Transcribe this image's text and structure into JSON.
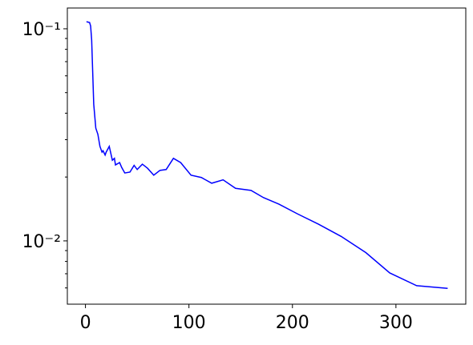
{
  "chart_data": {
    "type": "line",
    "log_y": true,
    "color": "#0000ff",
    "x": [
      1,
      4,
      5,
      6,
      8,
      10,
      12,
      14,
      16,
      17,
      19,
      20,
      23,
      26,
      28,
      29,
      33,
      35,
      38,
      43,
      47,
      50,
      55,
      60,
      66,
      72,
      78,
      85,
      92,
      102,
      112,
      122,
      133,
      145,
      160,
      172,
      187,
      205,
      225,
      247,
      271,
      294,
      320,
      350
    ],
    "values": [
      0.108,
      0.107,
      0.103,
      0.0886,
      0.0441,
      0.034,
      0.0318,
      0.0279,
      0.0262,
      0.0266,
      0.0254,
      0.0262,
      0.0279,
      0.024,
      0.0245,
      0.0228,
      0.0234,
      0.0222,
      0.0209,
      0.0211,
      0.0227,
      0.0217,
      0.023,
      0.022,
      0.0204,
      0.0215,
      0.0217,
      0.0245,
      0.0234,
      0.0204,
      0.0199,
      0.0187,
      0.0194,
      0.0177,
      0.0173,
      0.016,
      0.0149,
      0.0134,
      0.012,
      0.0105,
      0.0088,
      0.00706,
      0.00615,
      0.00597
    ],
    "xlim": [
      -17.5,
      367.5
    ],
    "xticks": [
      0,
      100,
      200,
      300
    ],
    "ylim": [
      0.00503,
      0.1253
    ],
    "yticks": [
      {
        "value": 0.01,
        "label": "10⁻²"
      },
      {
        "value": 0.1,
        "label": "10⁻¹"
      }
    ],
    "yminor_ticks": [
      0.006,
      0.007,
      0.008,
      0.009,
      0.02,
      0.03,
      0.04,
      0.05,
      0.06,
      0.07,
      0.08,
      0.09
    ]
  }
}
